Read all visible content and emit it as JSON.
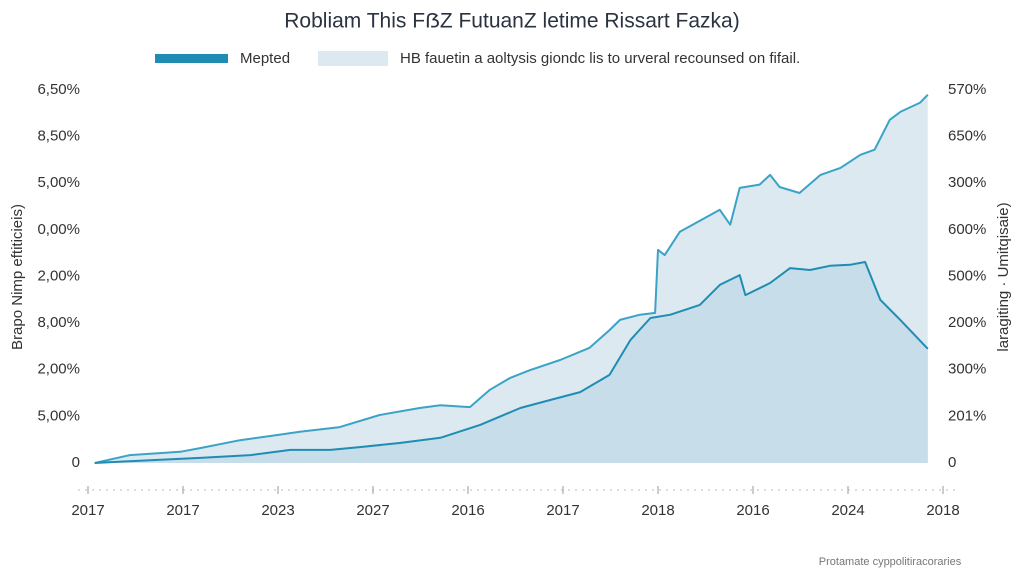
{
  "chart_data": {
    "type": "area",
    "title": "Robliam This FẞZ FutuanZ letime Rissart Fazka)",
    "ylabel": "Brapo Nimp eftiticieis)",
    "y2label": "laragiting · Umitqisaie)",
    "footer": "Protamate cyppolitiracoraries",
    "xlim": [
      0,
      9
    ],
    "xticks": [
      {
        "value": 0,
        "label": "2017"
      },
      {
        "value": 1,
        "label": "2017"
      },
      {
        "value": 2,
        "label": "2023"
      },
      {
        "value": 3,
        "label": "2027"
      },
      {
        "value": 4,
        "label": "2016"
      },
      {
        "value": 5,
        "label": "2017"
      },
      {
        "value": 6,
        "label": "2018"
      },
      {
        "value": 7,
        "label": "2016"
      },
      {
        "value": 8,
        "label": "2024"
      },
      {
        "value": 9,
        "label": "2018"
      }
    ],
    "ylim": [
      0,
      8
    ],
    "yticks": [
      {
        "value": 0,
        "label": "0"
      },
      {
        "value": 1,
        "label": "5,00%"
      },
      {
        "value": 2,
        "label": "2,00%"
      },
      {
        "value": 3,
        "label": "8,00%"
      },
      {
        "value": 4,
        "label": "2,00%"
      },
      {
        "value": 5,
        "label": "0,00%"
      },
      {
        "value": 6,
        "label": "5,00%"
      },
      {
        "value": 7,
        "label": "8,50%"
      },
      {
        "value": 8,
        "label": "6,50%"
      }
    ],
    "y2lim": [
      0,
      8
    ],
    "y2ticks": [
      {
        "value": 0,
        "label": "0"
      },
      {
        "value": 1,
        "label": "201%"
      },
      {
        "value": 2,
        "label": "300%"
      },
      {
        "value": 3,
        "label": "200%"
      },
      {
        "value": 4,
        "label": "500%"
      },
      {
        "value": 5,
        "label": "600%"
      },
      {
        "value": 6,
        "label": "300%"
      },
      {
        "value": 7,
        "label": "650%"
      },
      {
        "value": 8,
        "label": "570%"
      }
    ],
    "grid": false,
    "series": [
      {
        "name": "Mepted",
        "color": "#1f8db3",
        "fill": "#c7dde9",
        "x": [
          0.07,
          0.65,
          1.18,
          1.71,
          2.13,
          2.55,
          2.86,
          3.28,
          3.71,
          4.13,
          4.55,
          4.86,
          5.18,
          5.49,
          5.71,
          5.92,
          6.13,
          6.44,
          6.65,
          6.86,
          6.92,
          7.18,
          7.39,
          7.6,
          7.81,
          8.02,
          8.18,
          8.34,
          8.55,
          8.84
        ],
        "values": [
          0,
          0.06,
          0.11,
          0.17,
          0.28,
          0.28,
          0.34,
          0.43,
          0.54,
          0.82,
          1.18,
          1.35,
          1.52,
          1.89,
          2.64,
          3.11,
          3.18,
          3.39,
          3.82,
          4.03,
          3.6,
          3.86,
          4.18,
          4.14,
          4.23,
          4.25,
          4.31,
          3.5,
          3.07,
          2.45
        ]
      },
      {
        "name": "HB fauetin a aoltysis giondc lis to urveral recounsed on fifail.",
        "color": "#3aa3c6",
        "fill": "#dde9f0",
        "x": [
          0.07,
          0.44,
          0.97,
          1.18,
          1.6,
          1.92,
          2.23,
          2.65,
          3.07,
          3.49,
          3.71,
          4.02,
          4.23,
          4.44,
          4.65,
          4.97,
          5.28,
          5.49,
          5.6,
          5.81,
          5.97,
          6.0,
          6.07,
          6.23,
          6.65,
          6.76,
          6.86,
          7.07,
          7.18,
          7.28,
          7.49,
          7.71,
          7.92,
          8.13,
          8.28,
          8.44,
          8.55,
          8.76,
          8.84
        ],
        "values": [
          0,
          0.17,
          0.24,
          0.32,
          0.49,
          0.58,
          0.67,
          0.77,
          1.03,
          1.18,
          1.24,
          1.2,
          1.57,
          1.82,
          1.99,
          2.21,
          2.47,
          2.85,
          3.07,
          3.18,
          3.22,
          4.57,
          4.46,
          4.96,
          5.43,
          5.11,
          5.9,
          5.97,
          6.18,
          5.92,
          5.79,
          6.18,
          6.33,
          6.61,
          6.72,
          7.36,
          7.53,
          7.73,
          7.9
        ]
      }
    ]
  }
}
